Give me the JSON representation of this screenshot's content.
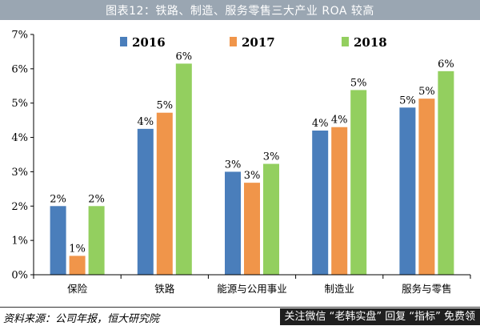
{
  "title": "图表12：铁路、制造、服务零售三大产业 ROA 较高",
  "source": "资料来源：公司年报，恒大研究院",
  "promo": "关注微信 “老韩实盘” 回复 “指标” 免费领",
  "chart_data": {
    "type": "bar",
    "categories": [
      "保险",
      "铁路",
      "能源与公用事业",
      "制造业",
      "服务与零售"
    ],
    "series": [
      {
        "name": "2016",
        "color": "#4a7ebb",
        "values": [
          2.0,
          4.25,
          3.0,
          4.2,
          4.87
        ],
        "labels": [
          "2%",
          "4%",
          "3%",
          "4%",
          "5%"
        ]
      },
      {
        "name": "2017",
        "color": "#f0954a",
        "values": [
          0.55,
          4.72,
          2.68,
          4.3,
          5.13
        ],
        "labels": [
          "1%",
          "5%",
          "3%",
          "4%",
          "5%"
        ]
      },
      {
        "name": "2018",
        "color": "#93cf5f",
        "values": [
          2.0,
          6.15,
          3.23,
          5.38,
          5.93
        ],
        "labels": [
          "2%",
          "6%",
          "3%",
          "5%",
          "6%"
        ]
      }
    ],
    "yticks": [
      "0%",
      "1%",
      "2%",
      "3%",
      "4%",
      "5%",
      "6%",
      "7%"
    ],
    "ylim": [
      0,
      7
    ],
    "legend_position": "top",
    "grid": false
  }
}
